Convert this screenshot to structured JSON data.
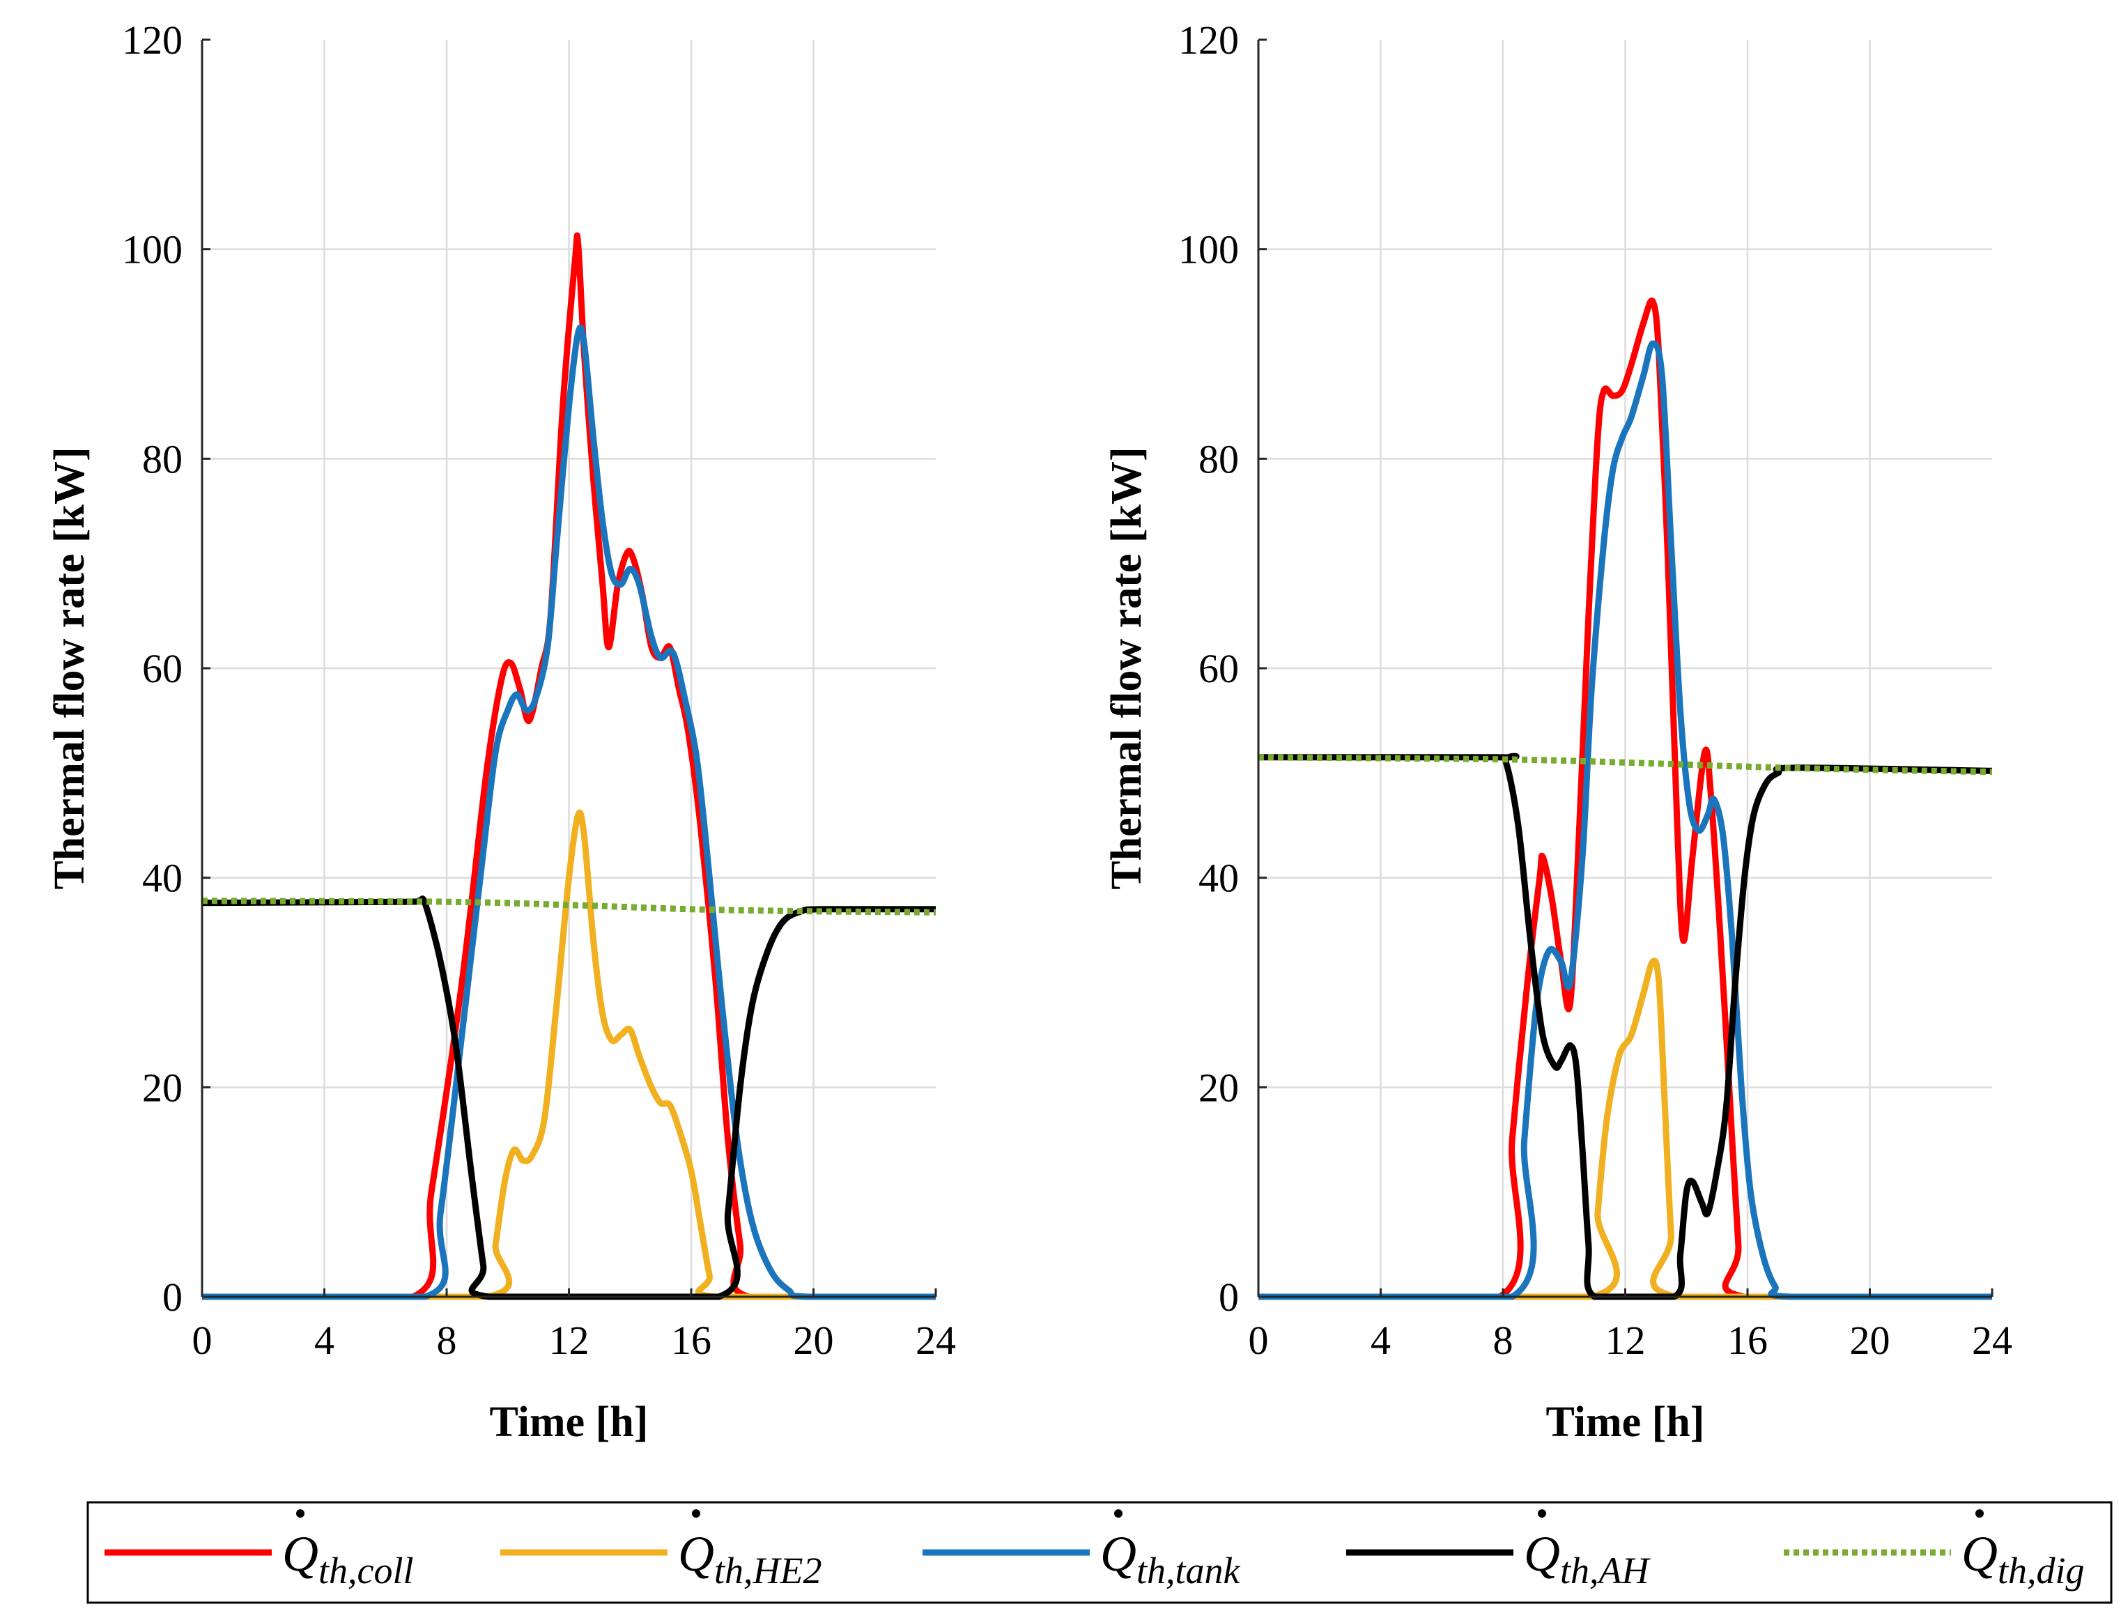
{
  "chart_data": [
    {
      "type": "line",
      "xlabel": "Time [h]",
      "ylabel": "Thermal flow rate  [kW]",
      "xlim": [
        0,
        24
      ],
      "ylim": [
        0,
        120
      ],
      "xticks": [
        "0",
        "4",
        "8",
        "12",
        "16",
        "20",
        "24"
      ],
      "yticks": [
        "0",
        "20",
        "40",
        "60",
        "80",
        "100",
        "120"
      ],
      "grid": true,
      "series": [
        {
          "key": "coll",
          "color": "#ff0000",
          "points": [
            [
              0,
              0
            ],
            [
              6.9,
              0
            ],
            [
              7.5,
              10
            ],
            [
              8.5,
              30
            ],
            [
              9.3,
              50
            ],
            [
              9.8,
              59
            ],
            [
              10.1,
              60.5
            ],
            [
              10.4,
              58
            ],
            [
              10.7,
              55
            ],
            [
              11.1,
              60
            ],
            [
              11.4,
              65
            ],
            [
              11.8,
              85
            ],
            [
              12.2,
              99
            ],
            [
              12.3,
              100.5
            ],
            [
              12.5,
              90
            ],
            [
              12.8,
              78
            ],
            [
              13.1,
              68
            ],
            [
              13.3,
              62
            ],
            [
              13.6,
              68
            ],
            [
              13.9,
              71
            ],
            [
              14.1,
              70.5
            ],
            [
              14.4,
              67
            ],
            [
              14.7,
              62
            ],
            [
              15.0,
              61
            ],
            [
              15.3,
              62
            ],
            [
              15.6,
              58
            ],
            [
              15.9,
              54
            ],
            [
              16.3,
              45
            ],
            [
              16.8,
              30
            ],
            [
              17.2,
              15
            ],
            [
              17.6,
              5
            ],
            [
              17.9,
              0
            ],
            [
              24,
              0
            ]
          ]
        },
        {
          "key": "HE2",
          "color": "#f0b020",
          "points": [
            [
              0,
              0
            ],
            [
              9.3,
              0
            ],
            [
              9.6,
              5
            ],
            [
              9.9,
              11
            ],
            [
              10.2,
              14
            ],
            [
              10.5,
              13
            ],
            [
              10.8,
              13.5
            ],
            [
              11.2,
              17
            ],
            [
              11.6,
              28
            ],
            [
              12.0,
              40
            ],
            [
              12.3,
              46
            ],
            [
              12.5,
              44
            ],
            [
              12.8,
              34
            ],
            [
              13.1,
              27
            ],
            [
              13.4,
              24.5
            ],
            [
              13.7,
              25
            ],
            [
              14.0,
              25.5
            ],
            [
              14.3,
              23
            ],
            [
              14.7,
              20
            ],
            [
              15.0,
              18.5
            ],
            [
              15.3,
              18.3
            ],
            [
              15.6,
              16
            ],
            [
              16.0,
              12
            ],
            [
              16.3,
              7
            ],
            [
              16.6,
              2
            ],
            [
              16.8,
              0
            ],
            [
              24,
              0
            ]
          ]
        },
        {
          "key": "tank",
          "color": "#1a75bc",
          "points": [
            [
              0,
              0
            ],
            [
              7.3,
              0
            ],
            [
              7.8,
              8
            ],
            [
              8.5,
              25
            ],
            [
              9.1,
              40
            ],
            [
              9.6,
              52
            ],
            [
              10.0,
              56
            ],
            [
              10.3,
              57.5
            ],
            [
              10.6,
              56
            ],
            [
              10.9,
              57
            ],
            [
              11.3,
              62
            ],
            [
              11.6,
              72
            ],
            [
              12.0,
              85
            ],
            [
              12.3,
              92
            ],
            [
              12.5,
              91
            ],
            [
              12.8,
              82
            ],
            [
              13.1,
              74
            ],
            [
              13.4,
              69
            ],
            [
              13.7,
              68
            ],
            [
              14.0,
              69.5
            ],
            [
              14.3,
              68
            ],
            [
              14.7,
              63
            ],
            [
              15.0,
              61
            ],
            [
              15.4,
              61.5
            ],
            [
              15.8,
              57
            ],
            [
              16.2,
              51
            ],
            [
              16.6,
              40
            ],
            [
              17.0,
              28
            ],
            [
              17.5,
              15
            ],
            [
              18.0,
              7
            ],
            [
              18.6,
              2.5
            ],
            [
              19.2,
              0.6
            ],
            [
              19.8,
              0
            ],
            [
              24,
              0
            ]
          ]
        },
        {
          "key": "AH",
          "color": "#000000",
          "points": [
            [
              0,
              37.6
            ],
            [
              6.6,
              37.7
            ],
            [
              7.1,
              37.8
            ],
            [
              7.3,
              37.5
            ],
            [
              7.8,
              32
            ],
            [
              8.3,
              24
            ],
            [
              8.8,
              12
            ],
            [
              9.2,
              3
            ],
            [
              9.4,
              0
            ],
            [
              16.9,
              0
            ],
            [
              17.2,
              8
            ],
            [
              17.6,
              20
            ],
            [
              18.0,
              28
            ],
            [
              18.5,
              33
            ],
            [
              19.0,
              35.8
            ],
            [
              19.6,
              36.8
            ],
            [
              20.3,
              37
            ],
            [
              24,
              37
            ]
          ]
        },
        {
          "key": "dig",
          "color": "#77ac30",
          "dashed": true,
          "points": [
            [
              0,
              37.8
            ],
            [
              8,
              37.7
            ],
            [
              12,
              37.4
            ],
            [
              16,
              37.0
            ],
            [
              20,
              36.8
            ],
            [
              24,
              36.7
            ]
          ]
        }
      ]
    },
    {
      "type": "line",
      "xlabel": "Time [h]",
      "ylabel": "Thermal flow rate  [kW]",
      "xlim": [
        0,
        24
      ],
      "ylim": [
        0,
        120
      ],
      "xticks": [
        "0",
        "4",
        "8",
        "12",
        "16",
        "20",
        "24"
      ],
      "yticks": [
        "0",
        "20",
        "40",
        "60",
        "80",
        "100",
        "120"
      ],
      "grid": true,
      "series": [
        {
          "key": "coll",
          "color": "#ff0000",
          "points": [
            [
              0,
              0
            ],
            [
              7.9,
              0
            ],
            [
              8.3,
              15
            ],
            [
              8.8,
              30
            ],
            [
              9.2,
              40
            ],
            [
              9.3,
              42
            ],
            [
              9.6,
              38
            ],
            [
              9.9,
              32
            ],
            [
              10.2,
              28
            ],
            [
              10.5,
              45
            ],
            [
              10.8,
              65
            ],
            [
              11.1,
              82
            ],
            [
              11.3,
              86.5
            ],
            [
              11.6,
              86
            ],
            [
              11.9,
              86.5
            ],
            [
              12.2,
              89
            ],
            [
              12.6,
              93
            ],
            [
              12.9,
              95
            ],
            [
              13.1,
              90
            ],
            [
              13.4,
              70
            ],
            [
              13.7,
              45
            ],
            [
              13.9,
              34
            ],
            [
              14.2,
              42
            ],
            [
              14.6,
              52
            ],
            [
              14.8,
              48
            ],
            [
              15.1,
              35
            ],
            [
              15.4,
              20
            ],
            [
              15.7,
              5
            ],
            [
              15.9,
              0
            ],
            [
              24,
              0
            ]
          ]
        },
        {
          "key": "HE2",
          "color": "#f0b020",
          "points": [
            [
              0,
              0
            ],
            [
              10.9,
              0
            ],
            [
              11.1,
              8
            ],
            [
              11.4,
              17
            ],
            [
              11.8,
              23
            ],
            [
              12.2,
              25
            ],
            [
              12.6,
              29
            ],
            [
              12.9,
              32
            ],
            [
              13.1,
              30
            ],
            [
              13.3,
              18
            ],
            [
              13.5,
              6
            ],
            [
              13.7,
              0
            ],
            [
              24,
              0
            ]
          ]
        },
        {
          "key": "tank",
          "color": "#1a75bc",
          "points": [
            [
              0,
              0
            ],
            [
              8.3,
              0
            ],
            [
              8.7,
              15
            ],
            [
              9.1,
              28
            ],
            [
              9.5,
              33
            ],
            [
              9.9,
              32
            ],
            [
              10.2,
              30
            ],
            [
              10.6,
              42
            ],
            [
              10.9,
              58
            ],
            [
              11.3,
              72
            ],
            [
              11.6,
              79
            ],
            [
              11.9,
              82
            ],
            [
              12.2,
              84
            ],
            [
              12.6,
              88
            ],
            [
              12.9,
              91
            ],
            [
              13.2,
              88
            ],
            [
              13.5,
              72
            ],
            [
              13.8,
              56
            ],
            [
              14.1,
              47
            ],
            [
              14.4,
              44.5
            ],
            [
              14.7,
              46
            ],
            [
              14.9,
              47.5
            ],
            [
              15.2,
              44
            ],
            [
              15.5,
              34
            ],
            [
              15.8,
              20
            ],
            [
              16.1,
              10
            ],
            [
              16.5,
              4
            ],
            [
              16.9,
              1
            ],
            [
              17.4,
              0
            ],
            [
              24,
              0
            ]
          ]
        },
        {
          "key": "AH",
          "color": "#000000",
          "points": [
            [
              0,
              51.5
            ],
            [
              7.8,
              51.5
            ],
            [
              8.1,
              51
            ],
            [
              8.5,
              45
            ],
            [
              8.9,
              34
            ],
            [
              9.3,
              25
            ],
            [
              9.7,
              22
            ],
            [
              9.9,
              22.5
            ],
            [
              10.2,
              24
            ],
            [
              10.4,
              22
            ],
            [
              10.6,
              14
            ],
            [
              10.8,
              5
            ],
            [
              11.0,
              0
            ],
            [
              13.6,
              0
            ],
            [
              13.8,
              4
            ],
            [
              14.0,
              10
            ],
            [
              14.2,
              11
            ],
            [
              14.5,
              9
            ],
            [
              14.7,
              8
            ],
            [
              15.0,
              12
            ],
            [
              15.3,
              18
            ],
            [
              15.6,
              30
            ],
            [
              15.9,
              40
            ],
            [
              16.2,
              46
            ],
            [
              16.6,
              49
            ],
            [
              17.0,
              50
            ],
            [
              17.6,
              50.5
            ],
            [
              24,
              50.2
            ]
          ]
        },
        {
          "key": "dig",
          "color": "#77ac30",
          "dashed": true,
          "points": [
            [
              0,
              51.5
            ],
            [
              8,
              51.3
            ],
            [
              12,
              51.0
            ],
            [
              16,
              50.6
            ],
            [
              20,
              50.3
            ],
            [
              24,
              50.1
            ]
          ]
        }
      ]
    }
  ],
  "legend": {
    "items": [
      {
        "key": "coll",
        "color": "#ff0000",
        "symbol": "Q",
        "subscript": "th,coll"
      },
      {
        "key": "HE2",
        "color": "#f0b020",
        "symbol": "Q",
        "subscript": "th,HE2"
      },
      {
        "key": "tank",
        "color": "#1a75bc",
        "symbol": "Q",
        "subscript": "th,tank"
      },
      {
        "key": "AH",
        "color": "#000000",
        "symbol": "Q",
        "subscript": "th,AH"
      },
      {
        "key": "dig",
        "color": "#77ac30",
        "symbol": "Q",
        "subscript": "th,dig",
        "dashed": true
      }
    ]
  }
}
